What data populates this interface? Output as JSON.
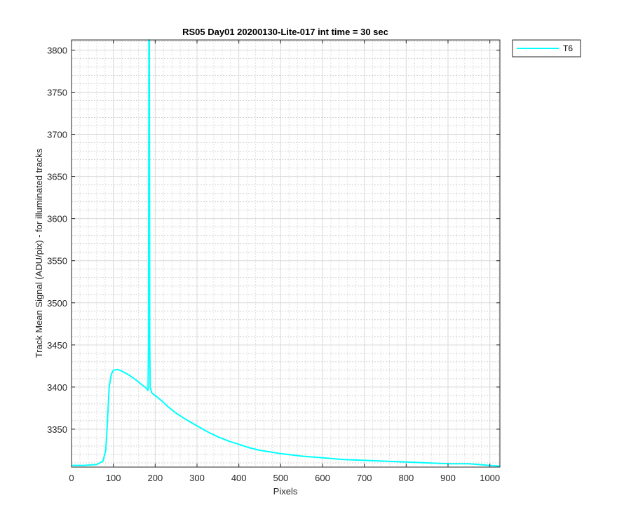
{
  "chart_data": {
    "type": "line",
    "title": "RS05 Day01 20200130-Lite-017 int time = 30 sec",
    "xlabel": "Pixels",
    "ylabel": "Track Mean Signal (ADU/pix) - for illuminated tracks",
    "xlim": [
      0,
      1024
    ],
    "ylim": [
      3305,
      3812
    ],
    "x_ticks": [
      0,
      100,
      200,
      300,
      400,
      500,
      600,
      700,
      800,
      900,
      1000
    ],
    "y_ticks": [
      3350,
      3400,
      3450,
      3500,
      3550,
      3600,
      3650,
      3700,
      3750,
      3800
    ],
    "x_tick_labels": [
      "0",
      "100",
      "200",
      "300",
      "400",
      "500",
      "600",
      "700",
      "800",
      "900",
      "1000"
    ],
    "y_tick_labels": [
      "3350",
      "3400",
      "3450",
      "3500",
      "3550",
      "3600",
      "3650",
      "3700",
      "3750",
      "3800"
    ],
    "grid": true,
    "minor_grid": true,
    "legend_position": "outside-top-right",
    "series": [
      {
        "name": "T6",
        "color": "#00FFFF",
        "points": [
          [
            0,
            3307
          ],
          [
            30,
            3307
          ],
          [
            60,
            3308
          ],
          [
            75,
            3312
          ],
          [
            82,
            3325
          ],
          [
            86,
            3360
          ],
          [
            90,
            3400
          ],
          [
            95,
            3415
          ],
          [
            100,
            3420
          ],
          [
            110,
            3421
          ],
          [
            120,
            3419
          ],
          [
            135,
            3415
          ],
          [
            150,
            3410
          ],
          [
            165,
            3404
          ],
          [
            178,
            3399
          ],
          [
            183,
            3396
          ],
          [
            184,
            3450
          ],
          [
            185,
            3812
          ],
          [
            186,
            3812
          ],
          [
            187,
            3450
          ],
          [
            188,
            3400
          ],
          [
            192,
            3393
          ],
          [
            200,
            3390
          ],
          [
            215,
            3384
          ],
          [
            230,
            3377
          ],
          [
            250,
            3369
          ],
          [
            275,
            3361
          ],
          [
            300,
            3354
          ],
          [
            325,
            3347
          ],
          [
            350,
            3341
          ],
          [
            375,
            3336
          ],
          [
            400,
            3332
          ],
          [
            425,
            3328
          ],
          [
            450,
            3325
          ],
          [
            475,
            3323
          ],
          [
            500,
            3321
          ],
          [
            550,
            3318
          ],
          [
            600,
            3316
          ],
          [
            650,
            3314
          ],
          [
            700,
            3313
          ],
          [
            750,
            3312
          ],
          [
            800,
            3311
          ],
          [
            850,
            3310
          ],
          [
            900,
            3309
          ],
          [
            950,
            3309
          ],
          [
            1000,
            3307
          ],
          [
            1024,
            3306
          ]
        ]
      }
    ]
  }
}
